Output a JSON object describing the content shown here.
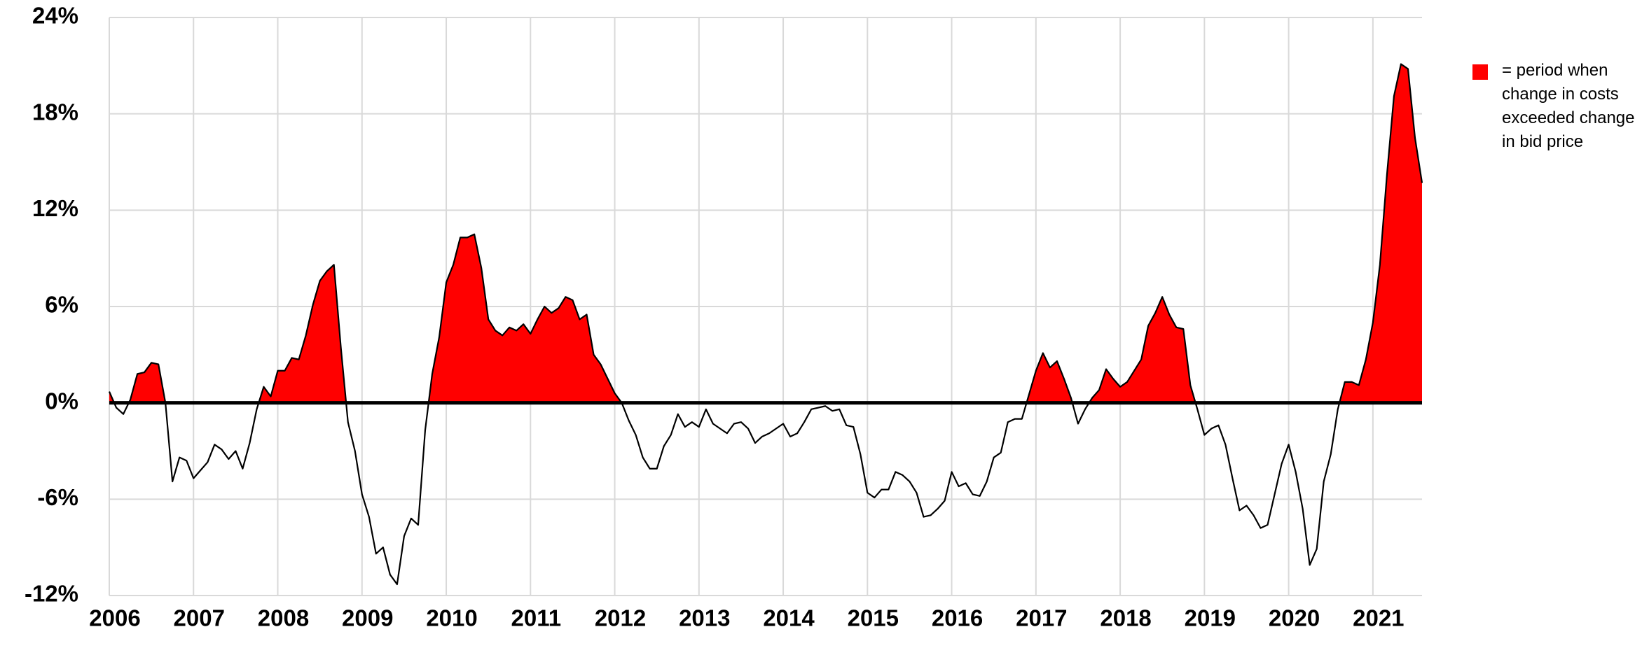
{
  "chart_data": {
    "type": "line",
    "color": "#000000",
    "positive_fill": "#ff0000",
    "legend_text": "= period when change in costs exceeded change in bid price",
    "grid": true,
    "ylim": [
      -12,
      24
    ],
    "yticks": [
      {
        "value": -12,
        "label": "-12%"
      },
      {
        "value": -6,
        "label": "-6%"
      },
      {
        "value": 0,
        "label": "0%"
      },
      {
        "value": 6,
        "label": "6%"
      },
      {
        "value": 12,
        "label": "12%"
      },
      {
        "value": 18,
        "label": "18%"
      },
      {
        "value": 24,
        "label": "24%"
      }
    ],
    "categories": [
      "2006",
      null,
      null,
      null,
      null,
      null,
      null,
      null,
      null,
      null,
      null,
      null,
      "2007",
      null,
      null,
      null,
      null,
      null,
      null,
      null,
      null,
      null,
      null,
      null,
      "2008",
      null,
      null,
      null,
      null,
      null,
      null,
      null,
      null,
      null,
      null,
      null,
      "2009",
      null,
      null,
      null,
      null,
      null,
      null,
      null,
      null,
      null,
      null,
      null,
      "2010",
      null,
      null,
      null,
      null,
      null,
      null,
      null,
      null,
      null,
      null,
      null,
      "2011",
      null,
      null,
      null,
      null,
      null,
      null,
      null,
      null,
      null,
      null,
      null,
      "2012",
      null,
      null,
      null,
      null,
      null,
      null,
      null,
      null,
      null,
      null,
      null,
      "2013",
      null,
      null,
      null,
      null,
      null,
      null,
      null,
      null,
      null,
      null,
      null,
      "2014",
      null,
      null,
      null,
      null,
      null,
      null,
      null,
      null,
      null,
      null,
      null,
      "2015",
      null,
      null,
      null,
      null,
      null,
      null,
      null,
      null,
      null,
      null,
      null,
      "2016",
      null,
      null,
      null,
      null,
      null,
      null,
      null,
      null,
      null,
      null,
      null,
      "2017",
      null,
      null,
      null,
      null,
      null,
      null,
      null,
      null,
      null,
      null,
      null,
      "2018",
      null,
      null,
      null,
      null,
      null,
      null,
      null,
      null,
      null,
      null,
      null,
      "2019",
      null,
      null,
      null,
      null,
      null,
      null,
      null,
      null,
      null,
      null,
      null,
      "2020",
      null,
      null,
      null,
      null,
      null,
      null,
      null,
      null,
      null,
      null,
      null,
      "2021",
      null,
      null,
      null,
      null,
      null,
      null,
      null
    ],
    "values": [
      0.7,
      -0.3,
      -0.7,
      0.2,
      1.8,
      1.9,
      2.5,
      2.4,
      0,
      -4.9,
      -3.4,
      -3.6,
      -4.7,
      -4.2,
      -3.7,
      -2.6,
      -2.9,
      -3.5,
      -3.0,
      -4.1,
      -2.5,
      -0.4,
      1.0,
      0.4,
      2.0,
      2.0,
      2.8,
      2.7,
      4.2,
      6.1,
      7.6,
      8.2,
      8.6,
      3.4,
      -1.2,
      -3.0,
      -5.7,
      -7.1,
      -9.4,
      -9.0,
      -10.7,
      -11.3,
      -8.3,
      -7.2,
      -7.6,
      -1.7,
      1.8,
      4.1,
      7.5,
      8.6,
      10.3,
      10.3,
      10.5,
      8.4,
      5.2,
      4.5,
      4.2,
      4.7,
      4.5,
      4.9,
      4.3,
      5.2,
      6.0,
      5.6,
      5.9,
      6.6,
      6.4,
      5.2,
      5.5,
      3.0,
      2.4,
      1.5,
      0.6,
      0,
      -1.1,
      -2.0,
      -3.4,
      -4.1,
      -4.1,
      -2.7,
      -2.0,
      -0.7,
      -1.5,
      -1.2,
      -1.5,
      -0.4,
      -1.3,
      -1.6,
      -1.9,
      -1.3,
      -1.2,
      -1.6,
      -2.5,
      -2.1,
      -1.9,
      -1.6,
      -1.3,
      -2.1,
      -1.9,
      -1.2,
      -0.4,
      -0.3,
      -0.2,
      -0.5,
      -0.4,
      -1.4,
      -1.5,
      -3.2,
      -5.6,
      -5.9,
      -5.4,
      -5.4,
      -4.3,
      -4.5,
      -4.9,
      -5.6,
      -7.1,
      -7.0,
      -6.6,
      -6.1,
      -4.3,
      -5.2,
      -5.0,
      -5.7,
      -5.8,
      -4.9,
      -3.4,
      -3.1,
      -1.2,
      -1.0,
      -1.0,
      0.5,
      2.0,
      3.1,
      2.2,
      2.6,
      1.5,
      0.3,
      -1.3,
      -0.4,
      0.3,
      0.8,
      2.1,
      1.5,
      1.0,
      1.3,
      2.0,
      2.7,
      4.8,
      5.6,
      6.6,
      5.5,
      4.7,
      4.6,
      1.1,
      -0.4,
      -2.0,
      -1.6,
      -1.4,
      -2.6,
      -4.7,
      -6.7,
      -6.4,
      -7.0,
      -7.8,
      -7.6,
      -5.7,
      -3.8,
      -2.6,
      -4.3,
      -6.6,
      -10.1,
      -9.1,
      -4.9,
      -3.2,
      -0.4,
      1.3,
      1.3,
      1.1,
      2.7,
      5.0,
      8.6,
      14.2,
      19.1,
      21.1,
      20.8,
      16.5,
      13.7
    ]
  }
}
